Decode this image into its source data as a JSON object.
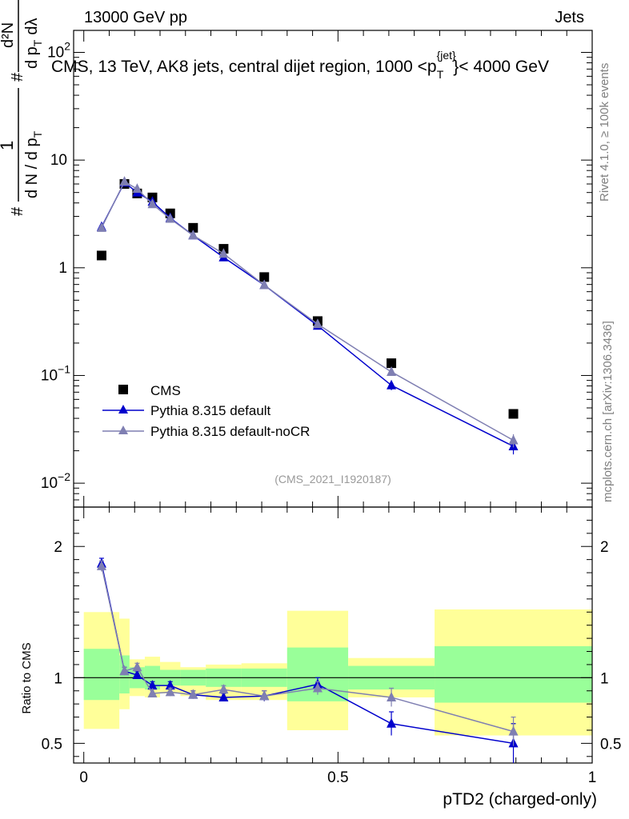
{
  "header": {
    "left": "13000 GeV pp",
    "right": "Jets",
    "title": "CMS, 13 TeV, AK8 jets, central dijet region, 1000 <p",
    "title_sup": "{jet}",
    "title_sub": "T",
    "title_end": "}< 4000 GeV",
    "analysis_id": "(CMS_2021_I1920187)"
  },
  "side_labels": {
    "rivet": "Rivet 4.1.0, ≥ 100k events",
    "mcplots": "mcplots.cern.ch [arXiv:1306.3436]"
  },
  "colors": {
    "cms": "#000000",
    "default": "#0000cc",
    "nocr": "#7f7fb2",
    "band_inner": "#99ff99",
    "band_outer": "#ffff99"
  },
  "chart_data": [
    {
      "type": "scatter+line",
      "panel": "main",
      "yscale": "log",
      "ylim": [
        0.006,
        160
      ],
      "xlim": [
        -0.02,
        1.0
      ],
      "ylabel_parts": {
        "numerator": "1",
        "den_a": "d N / d p",
        "den_sub": "T",
        "hash1": "#",
        "hash2": "#"
      },
      "ylabel_upper": {
        "num": "d²N",
        "den": "d p",
        "den_sub": "T",
        "den_end": "dλ"
      },
      "y_ticks": [
        {
          "value": 0.01,
          "base": "10",
          "exp": "−2"
        },
        {
          "value": 0.1,
          "base": "10",
          "exp": "−1"
        },
        {
          "value": 1,
          "base": "1",
          "exp": ""
        },
        {
          "value": 10,
          "base": "10",
          "exp": ""
        },
        {
          "value": 100,
          "base": "10",
          "exp": "2"
        }
      ],
      "x": [
        0.035,
        0.08,
        0.105,
        0.135,
        0.17,
        0.215,
        0.275,
        0.355,
        0.46,
        0.605,
        0.845
      ],
      "series": [
        {
          "name": "CMS",
          "key": "cms",
          "marker": "square",
          "values": [
            1.3,
            6.0,
            4.9,
            4.5,
            3.2,
            2.35,
            1.5,
            0.82,
            0.32,
            0.13,
            0.044
          ]
        },
        {
          "name": "Pythia 8.315 default",
          "key": "default",
          "marker": "triangle",
          "values": [
            2.4,
            6.2,
            5.0,
            4.1,
            2.9,
            2.0,
            1.25,
            0.69,
            0.29,
            0.081,
            0.022
          ],
          "errors": [
            0.05,
            0.15,
            0.1,
            0.1,
            0.08,
            0.05,
            0.04,
            0.02,
            0.015,
            0.008,
            0.0035
          ]
        },
        {
          "name": "Pythia 8.315 default-noCR",
          "key": "nocr",
          "marker": "triangle",
          "values": [
            2.35,
            6.3,
            5.4,
            3.9,
            2.85,
            2.0,
            1.35,
            0.69,
            0.3,
            0.108,
            0.025
          ],
          "errors": [
            0.05,
            0.15,
            0.1,
            0.1,
            0.08,
            0.05,
            0.04,
            0.02,
            0.015,
            0.008,
            0.0035
          ]
        }
      ]
    },
    {
      "type": "ratio",
      "panel": "ratio",
      "ylabel": "Ratio to CMS",
      "xlabel": "pTD2 (charged-only)",
      "ylim": [
        0.35,
        2.3
      ],
      "xlim": [
        -0.02,
        1.0
      ],
      "y_ticks": [
        {
          "value": 0.5,
          "label": "0.5"
        },
        {
          "value": 1,
          "label": "1"
        },
        {
          "value": 2,
          "label": "2"
        }
      ],
      "x_ticks": [
        {
          "value": 0,
          "label": "0"
        },
        {
          "value": 0.5,
          "label": "0.5"
        },
        {
          "value": 1,
          "label": "1"
        }
      ],
      "bands": [
        {
          "x0": 0.0,
          "x1": 0.07,
          "inner": [
            0.83,
            1.22
          ],
          "outer": [
            0.61,
            1.5
          ]
        },
        {
          "x0": 0.07,
          "x1": 0.09,
          "inner": [
            0.88,
            1.17
          ],
          "outer": [
            0.76,
            1.45
          ]
        },
        {
          "x0": 0.09,
          "x1": 0.12,
          "inner": [
            0.92,
            1.08
          ],
          "outer": [
            0.86,
            1.14
          ]
        },
        {
          "x0": 0.12,
          "x1": 0.15,
          "inner": [
            0.91,
            1.09
          ],
          "outer": [
            0.85,
            1.16
          ]
        },
        {
          "x0": 0.15,
          "x1": 0.19,
          "inner": [
            0.94,
            1.06
          ],
          "outer": [
            0.88,
            1.12
          ]
        },
        {
          "x0": 0.19,
          "x1": 0.24,
          "inner": [
            0.94,
            1.06
          ],
          "outer": [
            0.86,
            1.08
          ]
        },
        {
          "x0": 0.24,
          "x1": 0.31,
          "inner": [
            0.93,
            1.07
          ],
          "outer": [
            0.83,
            1.1
          ]
        },
        {
          "x0": 0.31,
          "x1": 0.4,
          "inner": [
            0.93,
            1.07
          ],
          "outer": [
            0.83,
            1.11
          ]
        },
        {
          "x0": 0.4,
          "x1": 0.52,
          "inner": [
            0.82,
            1.23
          ],
          "outer": [
            0.6,
            1.51
          ]
        },
        {
          "x0": 0.52,
          "x1": 0.69,
          "inner": [
            0.91,
            1.09
          ],
          "outer": [
            0.85,
            1.15
          ]
        },
        {
          "x0": 0.69,
          "x1": 1.0,
          "inner": [
            0.81,
            1.24
          ],
          "outer": [
            0.56,
            1.52
          ]
        }
      ],
      "series": [
        {
          "name": "Pythia 8.315 default",
          "key": "default",
          "values": [
            1.87,
            1.05,
            1.02,
            0.94,
            0.94,
            0.87,
            0.85,
            0.86,
            0.95,
            0.65,
            0.5
          ],
          "errors": [
            0.04,
            0.03,
            0.03,
            0.03,
            0.03,
            0.03,
            0.03,
            0.04,
            0.05,
            0.09,
            0.15
          ]
        },
        {
          "name": "Pythia 8.315 default-noCR",
          "key": "nocr",
          "values": [
            1.85,
            1.05,
            1.08,
            0.88,
            0.89,
            0.87,
            0.91,
            0.86,
            0.92,
            0.85,
            0.59
          ],
          "errors": [
            0.04,
            0.03,
            0.03,
            0.03,
            0.03,
            0.03,
            0.03,
            0.04,
            0.05,
            0.07,
            0.11
          ]
        }
      ]
    }
  ]
}
